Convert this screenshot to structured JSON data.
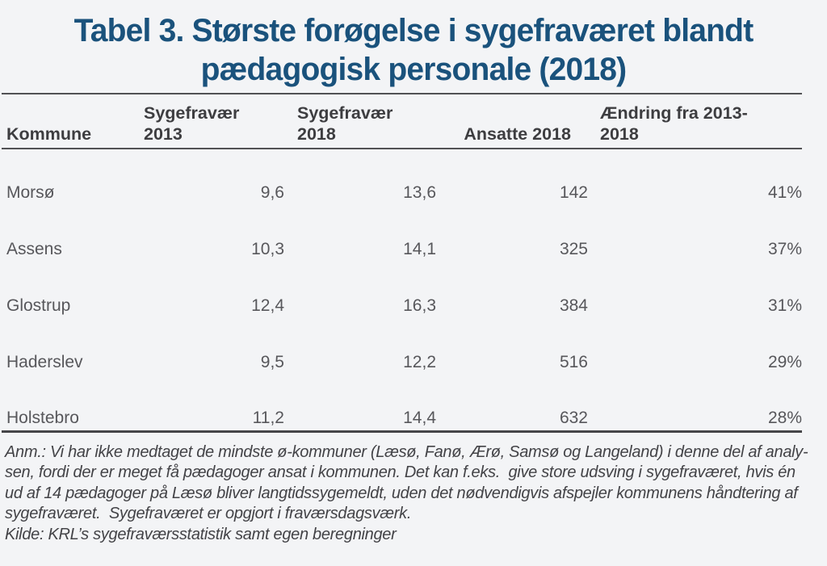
{
  "title": {
    "text": "Tabel 3. Største forøgelse i sygefraværet blandt\npædagogisk personale (2018)"
  },
  "table": {
    "columns": [
      "Kommune",
      "Sygefravær\n2013",
      "Sygefravær\n2018",
      "Ansatte 2018",
      "Ændring fra 2013-\n2018"
    ],
    "rows": [
      [
        "Morsø",
        "9,6",
        "13,6",
        "142",
        "41%"
      ],
      [
        "Assens",
        "10,3",
        "14,1",
        "325",
        "37%"
      ],
      [
        "Glostrup",
        "12,4",
        "16,3",
        "384",
        "31%"
      ],
      [
        "Haderslev",
        "9,5",
        "12,2",
        "516",
        "29%"
      ],
      [
        "Holstebro",
        "11,2",
        "14,4",
        "632",
        "28%"
      ]
    ]
  },
  "notes": {
    "lines": [
      "Anm.: Vi har ikke medtaget de mindste ø-kommuner (Læsø, Fanø, Ærø, Samsø og Langeland) i denne del af analy-",
      "sen, fordi der er meget få pædagoger ansat i kommunen. Det kan f.eks.  give store udsving i sygefraværet, hvis én",
      "ud af 14 pædagoger på Læsø bliver langtidssygemeldt, uden det nødvendigvis afspejler kommunens håndtering af",
      "sygefraværet.  Sygefraværet er opgjort i fraværsdagsværk.",
      "Kilde: KRL’s sygefraværsstatistik samt egen beregninger"
    ]
  },
  "colors": {
    "title": "#1a527c",
    "header_text": "#3d3d40",
    "body_text": "#57575b",
    "rule": "#515154",
    "background": "#f3f4f6"
  }
}
